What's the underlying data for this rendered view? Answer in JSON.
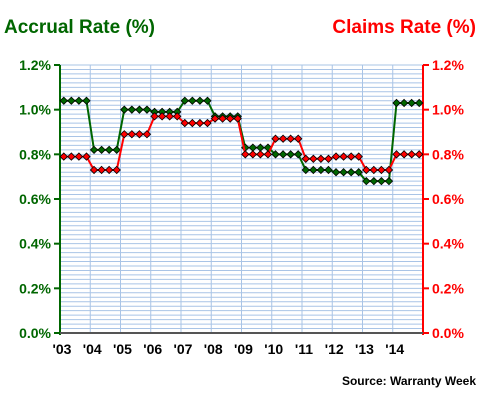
{
  "chart_data": {
    "type": "line",
    "left_title": "Accrual Rate (%)",
    "right_title": "Claims Rate (%)",
    "source": "Source: Warranty Week",
    "x": [
      "2003-Q1",
      "2003-Q2",
      "2003-Q3",
      "2003-Q4",
      "2004-Q1",
      "2004-Q2",
      "2004-Q3",
      "2004-Q4",
      "2005-Q1",
      "2005-Q2",
      "2005-Q3",
      "2005-Q4",
      "2006-Q1",
      "2006-Q2",
      "2006-Q3",
      "2006-Q4",
      "2007-Q1",
      "2007-Q2",
      "2007-Q3",
      "2007-Q4",
      "2008-Q1",
      "2008-Q2",
      "2008-Q3",
      "2008-Q4",
      "2009-Q1",
      "2009-Q2",
      "2009-Q3",
      "2009-Q4",
      "2010-Q1",
      "2010-Q2",
      "2010-Q3",
      "2010-Q4",
      "2011-Q1",
      "2011-Q2",
      "2011-Q3",
      "2011-Q4",
      "2012-Q1",
      "2012-Q2",
      "2012-Q3",
      "2012-Q4",
      "2013-Q1",
      "2013-Q2",
      "2013-Q3",
      "2013-Q4",
      "2014-Q1",
      "2014-Q2",
      "2014-Q3",
      "2014-Q4"
    ],
    "x_tick_labels": [
      "'03",
      "'04",
      "'05",
      "'06",
      "'07",
      "'08",
      "'09",
      "'10",
      "'11",
      "'12",
      "'13",
      "'14"
    ],
    "y_ticks": [
      "0.0%",
      "0.2%",
      "0.4%",
      "0.6%",
      "0.8%",
      "1.0%",
      "1.2%"
    ],
    "ylim": [
      0,
      1.2
    ],
    "grid": true,
    "series": [
      {
        "name": "Accrual Rate (%)",
        "axis": "left",
        "color": "#006600",
        "values": [
          1.04,
          1.04,
          1.04,
          1.04,
          0.82,
          0.82,
          0.82,
          0.82,
          1.0,
          1.0,
          1.0,
          1.0,
          0.99,
          0.99,
          0.99,
          0.99,
          1.04,
          1.04,
          1.04,
          1.04,
          0.97,
          0.97,
          0.97,
          0.97,
          0.83,
          0.83,
          0.83,
          0.83,
          0.8,
          0.8,
          0.8,
          0.8,
          0.73,
          0.73,
          0.73,
          0.73,
          0.72,
          0.72,
          0.72,
          0.72,
          0.68,
          0.68,
          0.68,
          0.68,
          1.03,
          1.03,
          1.03,
          1.03
        ]
      },
      {
        "name": "Claims Rate (%)",
        "axis": "right",
        "color": "#ff0000",
        "values": [
          0.79,
          0.79,
          0.79,
          0.79,
          0.73,
          0.73,
          0.73,
          0.73,
          0.89,
          0.89,
          0.89,
          0.89,
          0.97,
          0.97,
          0.97,
          0.97,
          0.94,
          0.94,
          0.94,
          0.94,
          0.96,
          0.96,
          0.96,
          0.96,
          0.8,
          0.8,
          0.8,
          0.8,
          0.87,
          0.87,
          0.87,
          0.87,
          0.78,
          0.78,
          0.78,
          0.78,
          0.79,
          0.79,
          0.79,
          0.79,
          0.73,
          0.73,
          0.73,
          0.73,
          0.8,
          0.8,
          0.8,
          0.8
        ]
      }
    ]
  }
}
